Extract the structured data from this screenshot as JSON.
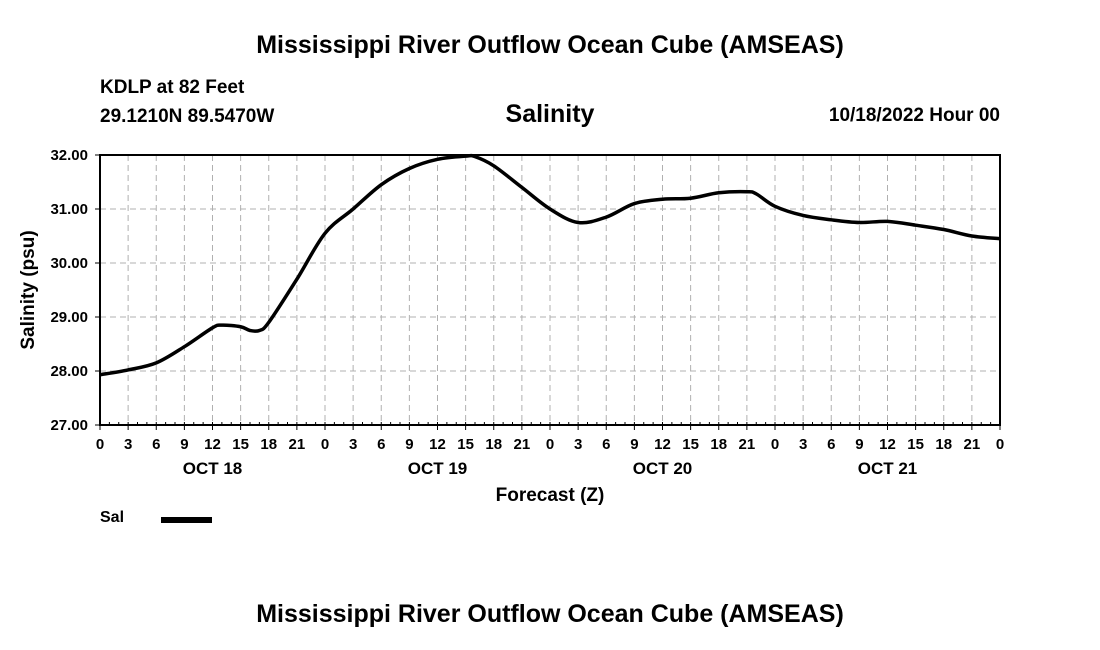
{
  "page": {
    "title_top": "Mississippi River Outflow Ocean Cube (AMSEAS)",
    "title_bottom": "Mississippi River Outflow Ocean Cube (AMSEAS)",
    "station": "KDLP at 82 Feet",
    "coordinates": "29.1210N  89.5470W",
    "panel_title": "Salinity",
    "datetime": "10/18/2022 Hour 00"
  },
  "legend": {
    "label": "Sal",
    "color": "#000000"
  },
  "chart_data": {
    "type": "line",
    "title": "Salinity",
    "xlabel": "Forecast (Z)",
    "ylabel": "Salinity (psu)",
    "xlim": [
      0,
      96
    ],
    "ylim": [
      27,
      32
    ],
    "grid": true,
    "x_tick_labels": [
      "0",
      "3",
      "6",
      "9",
      "12",
      "15",
      "18",
      "21",
      "0",
      "3",
      "6",
      "9",
      "12",
      "15",
      "18",
      "21",
      "0",
      "3",
      "6",
      "9",
      "12",
      "15",
      "18",
      "21",
      "0",
      "3",
      "6",
      "9",
      "12",
      "15",
      "18",
      "21",
      "0"
    ],
    "y_tick_labels": [
      "27.00",
      "28.00",
      "29.00",
      "30.00",
      "31.00",
      "32.00"
    ],
    "y_ticks": [
      27,
      28,
      29,
      30,
      31,
      32
    ],
    "day_labels": [
      {
        "label": "OCT 18",
        "hour": 12
      },
      {
        "label": "OCT 19",
        "hour": 36
      },
      {
        "label": "OCT 20",
        "hour": 60
      },
      {
        "label": "OCT 21",
        "hour": 84
      }
    ],
    "series": [
      {
        "name": "Sal",
        "color": "#000000",
        "x": [
          0,
          3,
          6,
          9,
          12,
          13,
          15,
          16,
          17,
          18,
          21,
          24,
          27,
          30,
          33,
          36,
          39,
          40,
          42,
          45,
          48,
          51,
          54,
          57,
          60,
          63,
          66,
          69,
          70,
          72,
          75,
          78,
          81,
          84,
          87,
          90,
          93,
          96
        ],
        "y": [
          27.93,
          28.02,
          28.15,
          28.45,
          28.8,
          28.85,
          28.82,
          28.75,
          28.75,
          28.9,
          29.7,
          30.55,
          31.0,
          31.45,
          31.75,
          31.92,
          31.98,
          31.97,
          31.8,
          31.4,
          31.0,
          30.75,
          30.85,
          31.1,
          31.18,
          31.2,
          31.3,
          31.32,
          31.28,
          31.05,
          30.88,
          30.8,
          30.75,
          30.77,
          30.7,
          30.62,
          30.5,
          30.45
        ]
      }
    ]
  }
}
